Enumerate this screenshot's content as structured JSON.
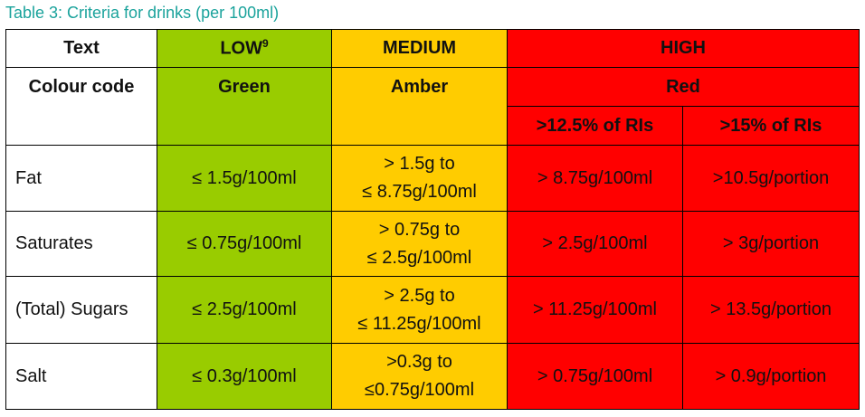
{
  "caption": "Table 3: Criteria for drinks (per 100ml)",
  "header": {
    "text": "Text",
    "low": "LOW",
    "low_note": "9",
    "medium": "MEDIUM",
    "high": "HIGH",
    "colour_code": "Colour code",
    "green": "Green",
    "amber": "Amber",
    "red": "Red",
    "high_columns": [
      ">12.5% of RIs",
      ">15% of RIs"
    ]
  },
  "rows": [
    [
      "Fat",
      "≤ 1.5g/100ml",
      [
        "> 1.5g to",
        "≤ 8.75g/100ml"
      ],
      "> 8.75g/100ml",
      ">10.5g/portion"
    ],
    [
      "Saturates",
      "≤ 0.75g/100ml",
      [
        "> 0.75g to",
        "≤ 2.5g/100ml"
      ],
      "> 2.5g/100ml",
      "> 3g/portion"
    ],
    [
      "(Total) Sugars",
      "≤ 2.5g/100ml",
      [
        "> 2.5g to",
        "≤ 11.25g/100ml"
      ],
      "> 11.25g/100ml",
      "> 13.5g/portion"
    ],
    [
      "Salt",
      "≤ 0.3g/100ml",
      [
        ">0.3g to",
        "≤0.75g/100ml"
      ],
      "> 0.75g/100ml",
      "> 0.9g/portion"
    ]
  ]
}
